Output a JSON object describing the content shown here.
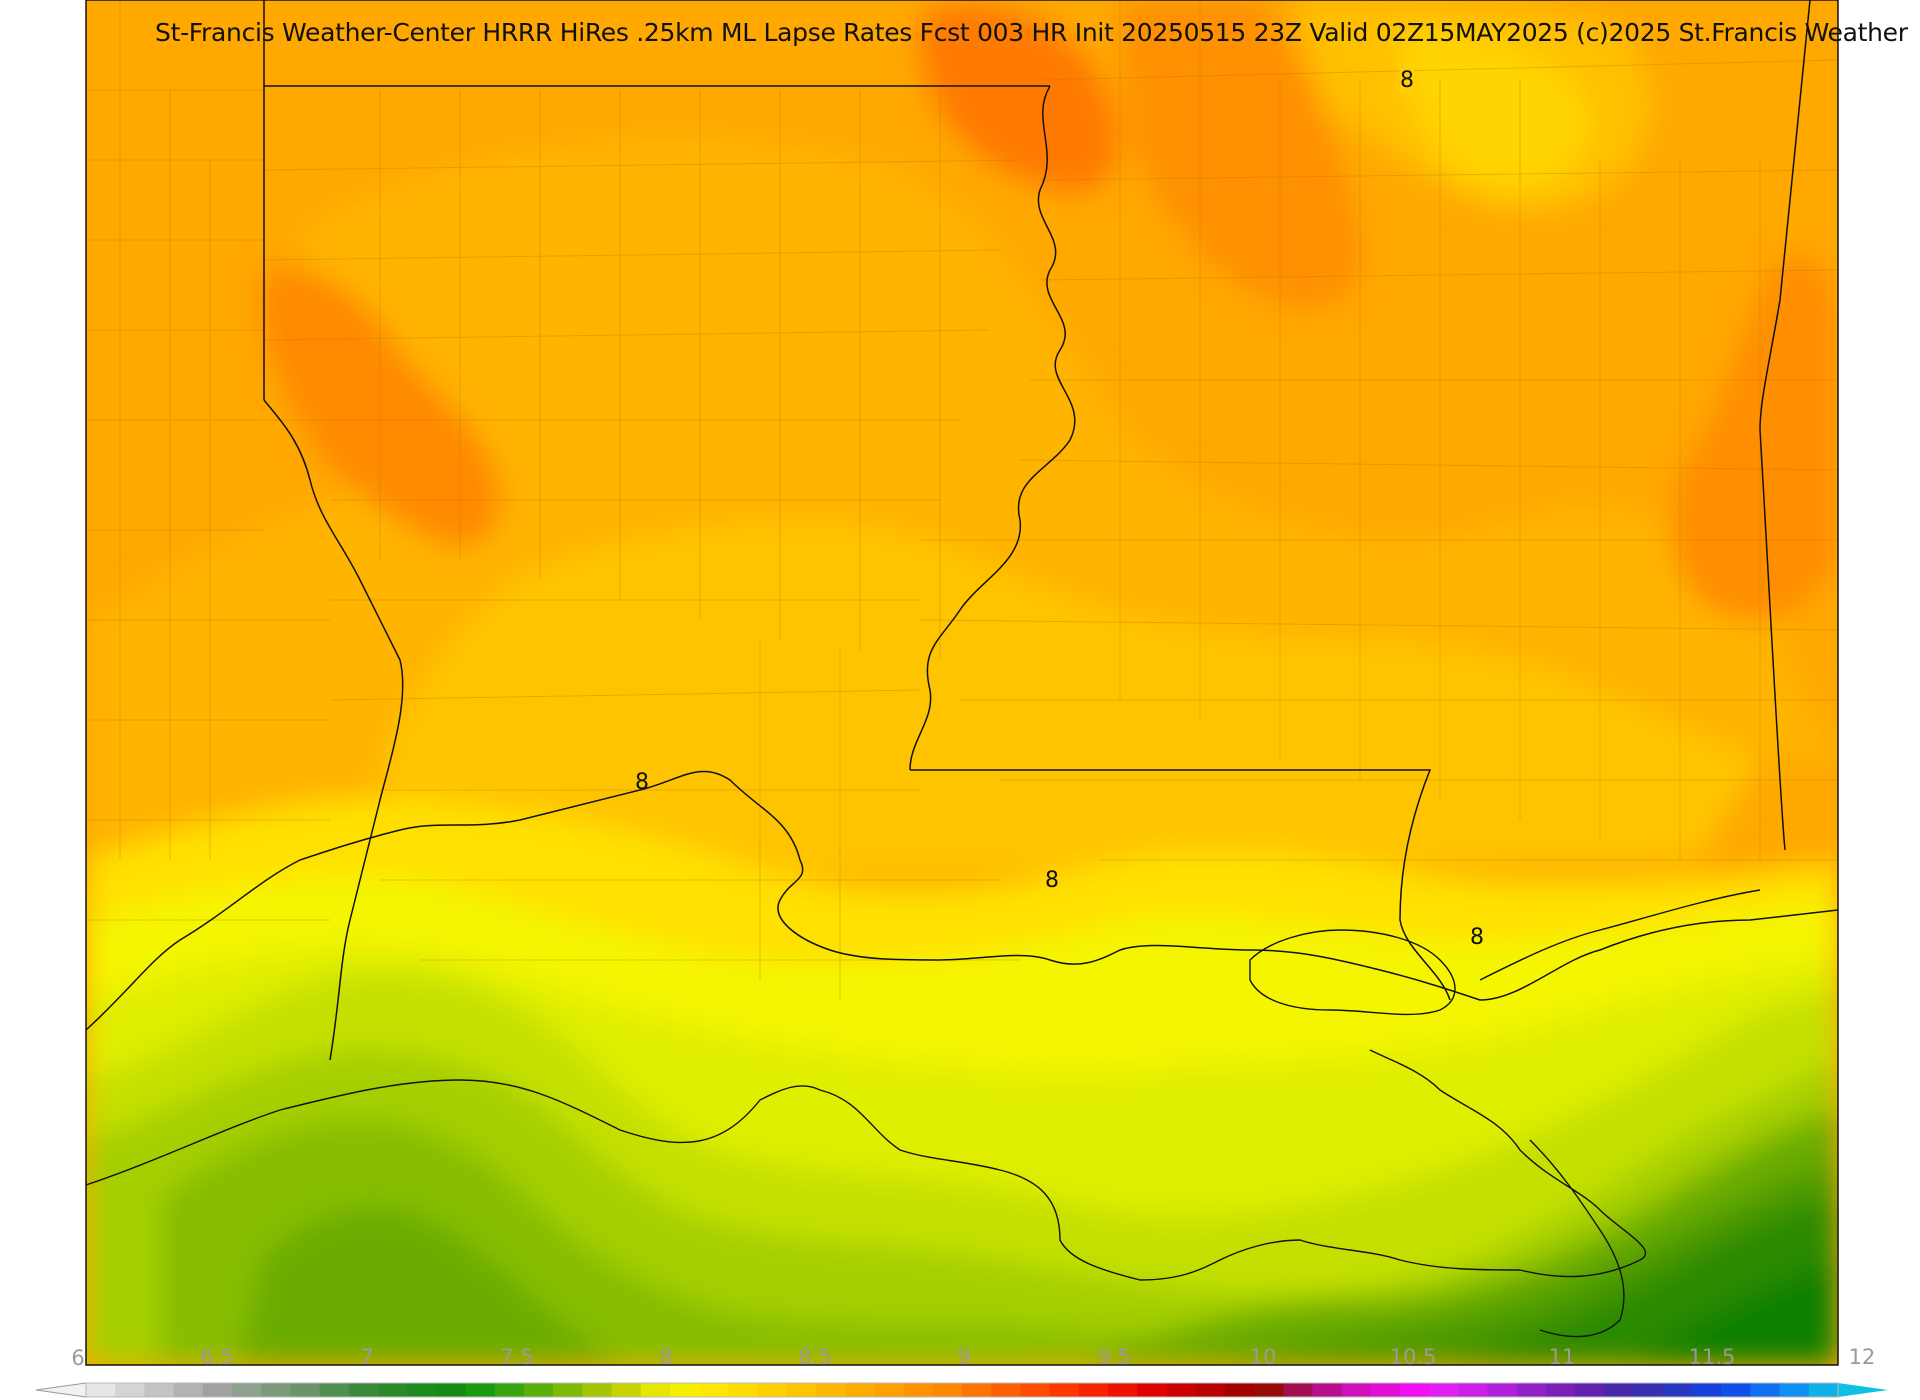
{
  "title": "St-Francis Weather-Center HRRR HiRes .25km ML Lapse Rates  Fcst 003 HR Init 20250515 23Z  Valid 02Z15MAY2025    (c)2025 St.Francis Weather",
  "contour_labels": [
    "8",
    "8",
    "8",
    "8"
  ],
  "colorbar": {
    "ticks": [
      "6",
      "6.5",
      "7",
      "7.5",
      "8",
      "8.5",
      "9",
      "9.5",
      "10",
      "10.5",
      "11",
      "11.5",
      "12"
    ],
    "min": 6,
    "max": 12,
    "step": 0.1,
    "colors": [
      "#e6e6e6",
      "#d4d4d4",
      "#c3c3c3",
      "#b2b2b2",
      "#a1a1a1",
      "#8fa08f",
      "#7a9a7a",
      "#6a956a",
      "#4f8f4f",
      "#3a8a3a",
      "#2a8a2a",
      "#1c8a1c",
      "#148c14",
      "#1a9a12",
      "#37a50e",
      "#5ab00a",
      "#7fbb06",
      "#a3c603",
      "#c8d400",
      "#e6e600",
      "#f5f000",
      "#ffe800",
      "#ffdc00",
      "#ffd000",
      "#ffc400",
      "#ffb800",
      "#ffac00",
      "#ffa000",
      "#ff9400",
      "#ff8800",
      "#ff7400",
      "#ff6000",
      "#ff4c00",
      "#ff3800",
      "#f82400",
      "#ec1400",
      "#e00000",
      "#cc0000",
      "#b80000",
      "#a40000",
      "#980a0a",
      "#a01050",
      "#b8108c",
      "#d010b8",
      "#e010d8",
      "#f010f0",
      "#e020f0",
      "#cc20e8",
      "#b020d8",
      "#9020c8",
      "#7820b8",
      "#6020b0",
      "#4828a8",
      "#3830b0",
      "#2838c0",
      "#1840d8",
      "#1050e8",
      "#1070f0",
      "#1090f0",
      "#10b0e8"
    ]
  },
  "legend_fill_colors": {
    "orange_deep": "#ff7f00",
    "orange": "#ff9400",
    "orange_light": "#ffa800",
    "amber": "#ffbc00",
    "gold": "#ffd000",
    "yellow": "#ffe800",
    "lemon": "#f5f500",
    "lime_light": "#e0ee00",
    "lime": "#c4e000",
    "yellowgreen": "#a5cf00",
    "green_light": "#86bd00",
    "green": "#6aac00",
    "green_mid": "#4c9a00",
    "green_dark": "#2a8a00",
    "green_deepest": "#118000"
  }
}
